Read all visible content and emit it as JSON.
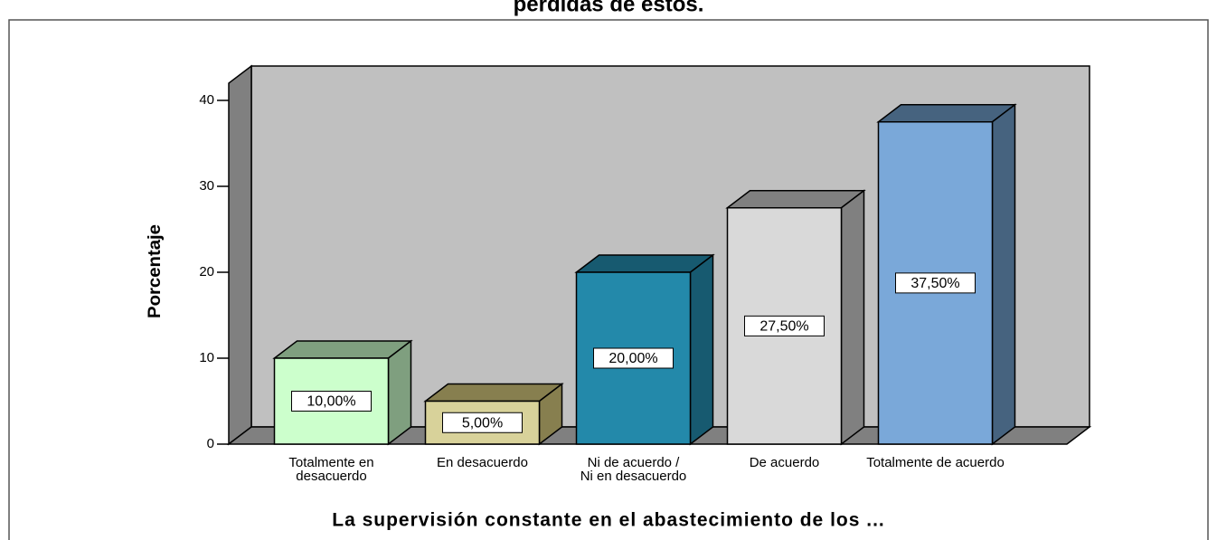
{
  "chart_data": {
    "type": "bar3d",
    "title": "pérdidas de estos.",
    "x_label": "La supervisión constante en el abastecimiento de los ...",
    "y_label": "Porcentaje",
    "categories": [
      "Totalmente en desacuerdo",
      "En desacuerdo",
      "Ni de acuerdo / Ni en desacuerdo",
      "De acuerdo",
      "Totalmente de acuerdo"
    ],
    "values": [
      10,
      5,
      20,
      27.5,
      37.5
    ],
    "value_labels": [
      "10,00%",
      "5,00%",
      "20,00%",
      "27,50%",
      "37,50%"
    ],
    "colors": [
      "#ccffcc",
      "#d8d29a",
      "#2389aa",
      "#d9d9d9",
      "#7aa8d9"
    ],
    "side_colors": [
      "#7f9f7f",
      "#877f4f",
      "#175a70",
      "#808080",
      "#46637f"
    ],
    "ylim": [
      0,
      42
    ],
    "yticks": [
      0,
      10,
      20,
      30,
      40
    ]
  }
}
